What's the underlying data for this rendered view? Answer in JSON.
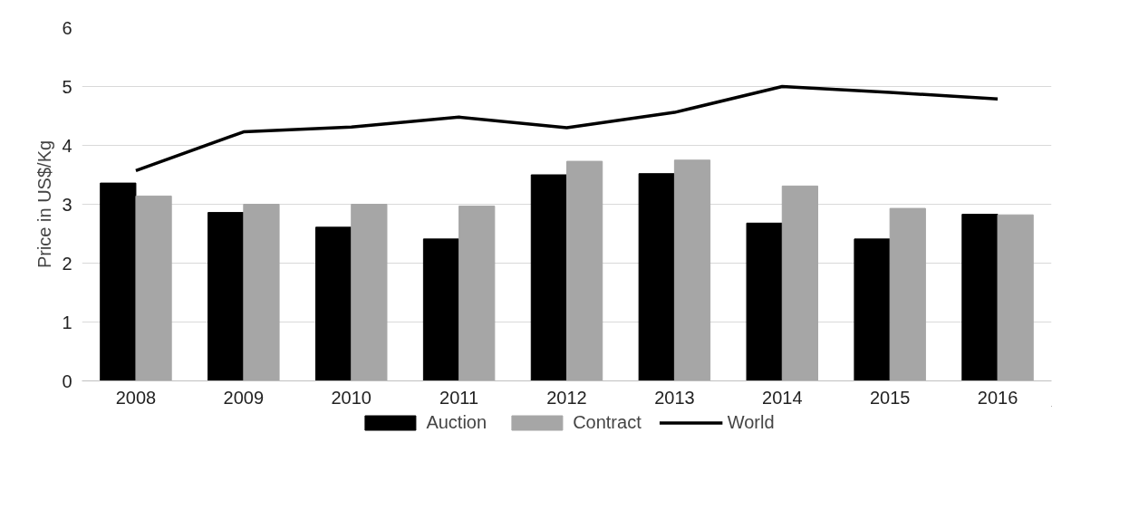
{
  "chart_data": {
    "type": "bar",
    "ylabel": "Price in US$/Kg",
    "categories": [
      "2008",
      "2009",
      "2010",
      "2011",
      "2012",
      "2013",
      "2014",
      "2015",
      "2016"
    ],
    "series": [
      {
        "name": "Auction",
        "color": "#000000",
        "values": [
          3.36,
          2.86,
          2.61,
          2.41,
          3.5,
          3.52,
          2.68,
          2.41,
          2.83
        ]
      },
      {
        "name": "Contract",
        "color": "#a6a6a6",
        "values": [
          3.14,
          3.0,
          3.0,
          2.97,
          3.73,
          3.75,
          3.31,
          2.93,
          2.82
        ]
      },
      {
        "name": "World",
        "type": "line",
        "color": "#000000",
        "values": [
          3.57,
          4.23,
          4.31,
          4.48,
          4.3,
          4.56,
          5.0,
          4.9,
          4.79
        ]
      }
    ],
    "ylim": [
      0,
      6
    ],
    "yticks": [
      0,
      1,
      2,
      3,
      4,
      5,
      6
    ],
    "grid": "y",
    "legend": "bottom"
  }
}
